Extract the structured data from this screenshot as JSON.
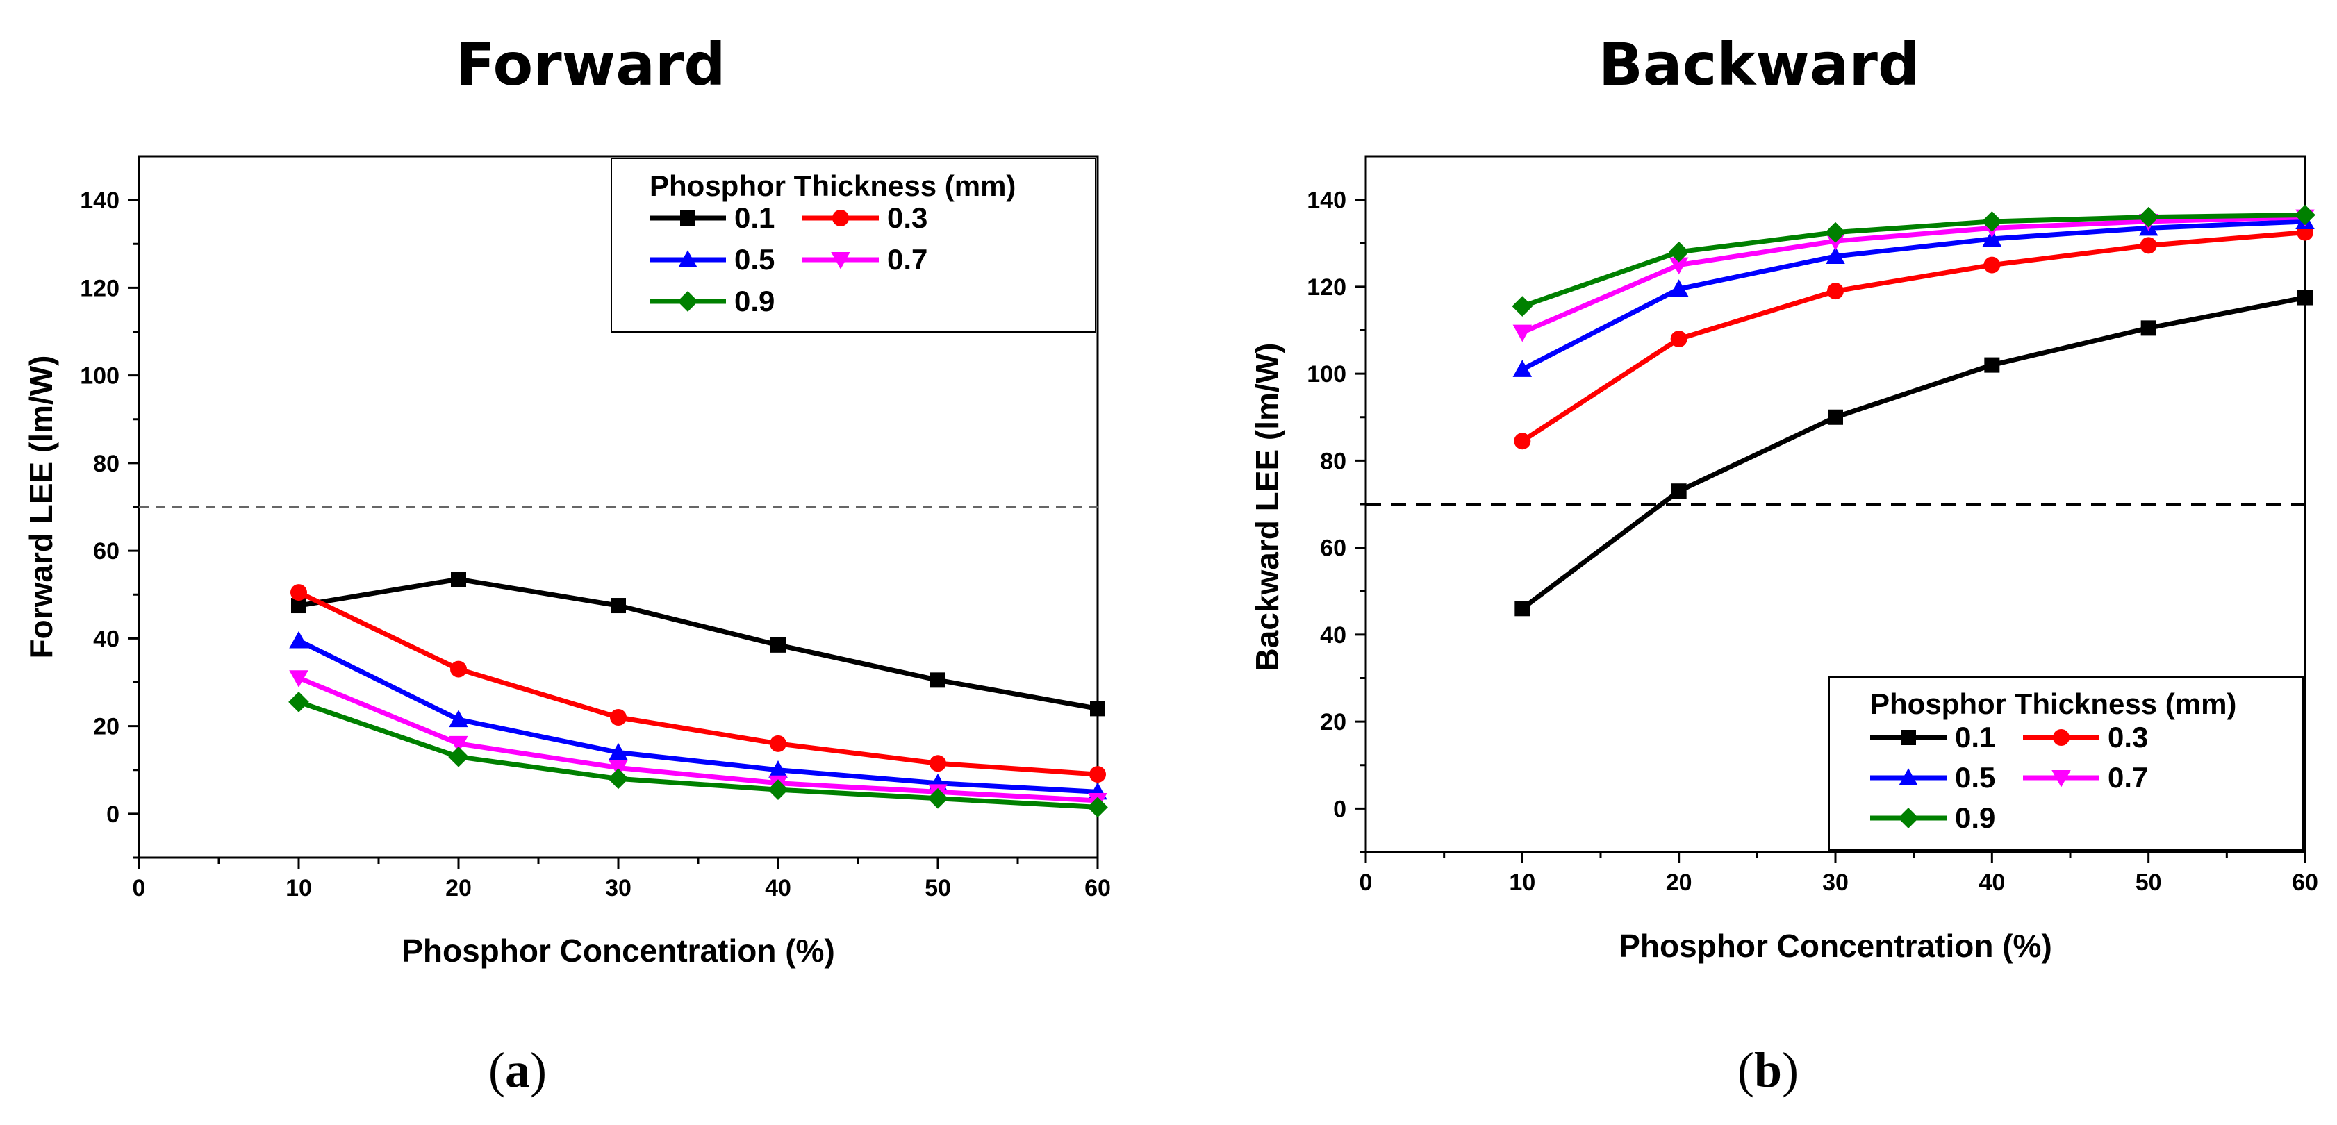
{
  "chart_data": [
    {
      "type": "line",
      "title": "Forward",
      "panel_label": "a",
      "xlabel": "Phosphor Concentration (%)",
      "ylabel": "Forward LEE (lm/W)",
      "xlim": [
        0,
        60
      ],
      "ylim": [
        -10,
        150
      ],
      "xticks": [
        0,
        10,
        20,
        30,
        40,
        50,
        60
      ],
      "yticks": [
        0,
        20,
        40,
        60,
        80,
        100,
        120,
        140
      ],
      "x": [
        10,
        20,
        30,
        40,
        50,
        60
      ],
      "reference_line": 70,
      "legend_title": "Phosphor Thickness (mm)",
      "legend_position": "top-right",
      "series": [
        {
          "name": "0.1",
          "color": "#000000",
          "marker": "square",
          "values": [
            47.5,
            53.5,
            47.5,
            38.5,
            30.5,
            24
          ]
        },
        {
          "name": "0.3",
          "color": "#ff0000",
          "marker": "circle",
          "values": [
            50.5,
            33,
            22,
            16,
            11.5,
            9
          ]
        },
        {
          "name": "0.5",
          "color": "#0000ff",
          "marker": "triangle-up",
          "values": [
            39.5,
            21.5,
            14,
            10,
            7,
            5
          ]
        },
        {
          "name": "0.7",
          "color": "#ff00ff",
          "marker": "triangle-down",
          "values": [
            31,
            16,
            10.5,
            7,
            5,
            3
          ]
        },
        {
          "name": "0.9",
          "color": "#008000",
          "marker": "diamond",
          "values": [
            25.5,
            13,
            8,
            5.5,
            3.5,
            1.5
          ]
        }
      ]
    },
    {
      "type": "line",
      "title": "Backward",
      "panel_label": "b",
      "xlabel": "Phosphor Concentration (%)",
      "ylabel": "Backward LEE (lm/W)",
      "xlim": [
        0,
        60
      ],
      "ylim": [
        -10,
        150
      ],
      "xticks": [
        0,
        10,
        20,
        30,
        40,
        50,
        60
      ],
      "yticks": [
        0,
        20,
        40,
        60,
        80,
        100,
        120,
        140
      ],
      "x": [
        10,
        20,
        30,
        40,
        50,
        60
      ],
      "reference_line": 70,
      "legend_title": "Phosphor Thickness (mm)",
      "legend_position": "bottom-right",
      "series": [
        {
          "name": "0.1",
          "color": "#000000",
          "marker": "square",
          "values": [
            46,
            73,
            90,
            102,
            110.5,
            117.5
          ]
        },
        {
          "name": "0.3",
          "color": "#ff0000",
          "marker": "circle",
          "values": [
            84.5,
            108,
            119,
            125,
            129.5,
            132.5
          ]
        },
        {
          "name": "0.5",
          "color": "#0000ff",
          "marker": "triangle-up",
          "values": [
            101,
            119.5,
            127,
            131,
            133.5,
            135
          ]
        },
        {
          "name": "0.7",
          "color": "#ff00ff",
          "marker": "triangle-down",
          "values": [
            109.5,
            125,
            130.5,
            133.5,
            135,
            136
          ]
        },
        {
          "name": "0.9",
          "color": "#008000",
          "marker": "diamond",
          "values": [
            115.5,
            128,
            132.5,
            135,
            136,
            136.5
          ]
        }
      ]
    }
  ]
}
